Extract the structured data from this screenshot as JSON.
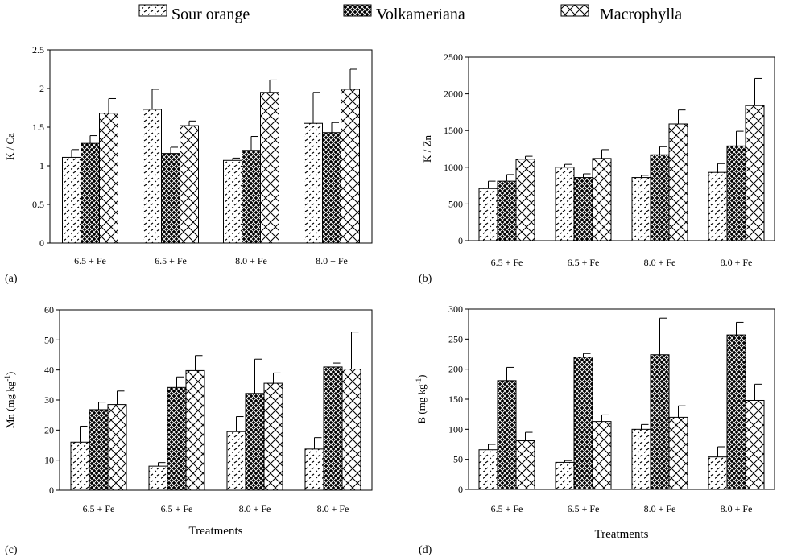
{
  "legend": {
    "entries": [
      "Sour orange",
      "Volkameriana",
      "Macrophylla"
    ]
  },
  "chart_data": [
    {
      "type": "bar",
      "panel_label": "(a)",
      "ylabel": "K / Ca",
      "xlabel": "",
      "ylim": [
        0,
        2.5
      ],
      "yticks": [
        "0",
        "0.5",
        "1",
        "1.5",
        "2",
        "2.5"
      ],
      "categories": [
        "6.5 + Fe",
        "6.5 + Fe",
        "8.0 + Fe",
        "8.0 + Fe"
      ],
      "series": [
        {
          "name": "Sour orange",
          "values": [
            1.11,
            1.73,
            1.07,
            1.55
          ],
          "errors": [
            0.1,
            0.26,
            0.03,
            0.4
          ]
        },
        {
          "name": "Volkameriana",
          "values": [
            1.29,
            1.16,
            1.2,
            1.43
          ],
          "errors": [
            0.1,
            0.08,
            0.18,
            0.13
          ]
        },
        {
          "name": "Macrophylla",
          "values": [
            1.68,
            1.52,
            1.95,
            1.99
          ],
          "errors": [
            0.19,
            0.06,
            0.16,
            0.26
          ]
        }
      ]
    },
    {
      "type": "bar",
      "panel_label": "(b)",
      "ylabel": "K / Zn",
      "xlabel": "",
      "ylim": [
        0,
        2500
      ],
      "yticks": [
        "0",
        "500",
        "1000",
        "1500",
        "2000",
        "2500"
      ],
      "categories": [
        "6.5 + Fe",
        "6.5 + Fe",
        "8.0 + Fe",
        "8.0 + Fe"
      ],
      "series": [
        {
          "name": "Sour orange",
          "values": [
            710,
            1000,
            860,
            930
          ],
          "errors": [
            100,
            40,
            30,
            120
          ]
        },
        {
          "name": "Volkameriana",
          "values": [
            810,
            860,
            1170,
            1290
          ],
          "errors": [
            90,
            50,
            110,
            200
          ]
        },
        {
          "name": "Macrophylla",
          "values": [
            1110,
            1120,
            1590,
            1840
          ],
          "errors": [
            40,
            120,
            190,
            370
          ]
        }
      ]
    },
    {
      "type": "bar",
      "panel_label": "(c)",
      "ylabel": "Mn (mg kg-1)",
      "ylabel_base": "Mn (mg kg",
      "ylabel_sup": "-1",
      "ylabel_end": ")",
      "xlabel": "Treatments",
      "ylim": [
        0,
        60
      ],
      "yticks": [
        "0",
        "10",
        "20",
        "30",
        "40",
        "50",
        "60"
      ],
      "categories": [
        "6.5 + Fe",
        "6.5 + Fe",
        "8.0 + Fe",
        "8.0 + Fe"
      ],
      "series": [
        {
          "name": "Sour orange",
          "values": [
            16,
            8,
            19.5,
            13.7
          ],
          "errors": [
            5.3,
            1.2,
            5.0,
            3.8
          ]
        },
        {
          "name": "Volkameriana",
          "values": [
            26.8,
            34.2,
            32.2,
            41.0
          ],
          "errors": [
            2.5,
            3.5,
            11.4,
            1.3
          ]
        },
        {
          "name": "Macrophylla",
          "values": [
            28.5,
            39.8,
            35.6,
            40.3
          ],
          "errors": [
            4.5,
            5.0,
            3.4,
            12.3
          ]
        }
      ]
    },
    {
      "type": "bar",
      "panel_label": "(d)",
      "ylabel": "B (mg kg-1)",
      "ylabel_base": "B (mg kg",
      "ylabel_sup": "-1",
      "ylabel_end": ")",
      "xlabel": "Treatments",
      "ylim": [
        0,
        300
      ],
      "yticks": [
        "0",
        "50",
        "100",
        "150",
        "200",
        "250",
        "300"
      ],
      "categories": [
        "6.5 + Fe",
        "6.5 + Fe",
        "8.0 + Fe",
        "8.0 + Fe"
      ],
      "series": [
        {
          "name": "Sour orange",
          "values": [
            66,
            45,
            100,
            54
          ],
          "errors": [
            9,
            3,
            8,
            17
          ]
        },
        {
          "name": "Volkameriana",
          "values": [
            181,
            220,
            224,
            257
          ],
          "errors": [
            22,
            6,
            61,
            21
          ]
        },
        {
          "name": "Macrophylla",
          "values": [
            81,
            113,
            120,
            148
          ],
          "errors": [
            14,
            11,
            19,
            27
          ]
        }
      ]
    }
  ]
}
